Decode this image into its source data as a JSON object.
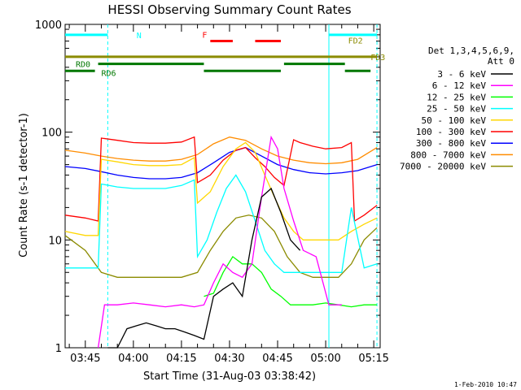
{
  "chart_data": {
    "type": "line",
    "title": "HESSI Observing Summary Count Rates",
    "xlabel": "Start Time (31-Aug-03 03:38:42)",
    "ylabel": "Count Rate (s-1 detector-1)",
    "xlim": [
      "03:38:42",
      "05:17:00"
    ],
    "ylim": [
      1,
      1000
    ],
    "yscale": "log",
    "grid": false,
    "x_ticks": [
      "03:45",
      "04:00",
      "04:15",
      "04:30",
      "04:45",
      "05:00",
      "05:15"
    ],
    "y_ticks": [
      "1",
      "10",
      "100",
      "1000"
    ],
    "legend_header": [
      "Det 1,3,4,5,6,9,",
      "Att 0"
    ],
    "legend_position": "right",
    "timestamp": "1-Feb-2010 10:47",
    "series": [
      {
        "name": "3 - 6 keV",
        "color": "#000000",
        "x": [
          "03:52",
          "03:55",
          "03:58",
          "04:01",
          "04:04",
          "04:07",
          "04:10",
          "04:13",
          "04:16",
          "04:19",
          "04:22",
          "04:25",
          "04:28",
          "04:31",
          "04:34",
          "04:37",
          "04:40",
          "04:43",
          "04:46",
          "04:49",
          "04:52"
        ],
        "y": [
          1,
          1,
          1.5,
          1.6,
          1.7,
          1.6,
          1.5,
          1.5,
          1.4,
          1.3,
          1.2,
          3.0,
          3.5,
          4.0,
          3.0,
          10,
          25,
          30,
          18,
          10,
          8
        ]
      },
      {
        "name": "6 - 12 keV",
        "color": "#ff00ff",
        "x": [
          "03:49",
          "03:51",
          "03:55",
          "04:00",
          "04:05",
          "04:10",
          "04:15",
          "04:19",
          "04:22",
          "04:25",
          "04:28",
          "04:31",
          "04:34",
          "04:37",
          "04:40",
          "04:43",
          "04:45",
          "04:47",
          "04:50",
          "04:53",
          "04:57",
          "05:01",
          "05:05"
        ],
        "y": [
          1,
          2.5,
          2.5,
          2.6,
          2.5,
          2.4,
          2.5,
          2.4,
          2.5,
          4,
          6,
          5,
          4.5,
          6,
          25,
          90,
          70,
          30,
          15,
          8,
          7,
          2.5,
          2.5
        ]
      },
      {
        "name": "12 - 25 keV",
        "color": "#00ff00",
        "x": [
          "04:22",
          "04:25",
          "04:28",
          "04:31",
          "04:34",
          "04:37",
          "04:40",
          "04:43",
          "04:46",
          "04:49",
          "04:52",
          "04:56",
          "05:00",
          "05:04",
          "05:08",
          "05:12",
          "05:16"
        ],
        "y": [
          3,
          3.2,
          5,
          7,
          6,
          6,
          5,
          3.5,
          3,
          2.5,
          2.5,
          2.5,
          2.6,
          2.5,
          2.4,
          2.5,
          2.5
        ]
      },
      {
        "name": "25 - 50 keV",
        "color": "#00ffff",
        "x": [
          "03:38:42",
          "03:45",
          "03:49",
          "03:50",
          "03:55",
          "04:00",
          "04:05",
          "04:10",
          "04:15",
          "04:19",
          "04:20",
          "04:23",
          "04:26",
          "04:29",
          "04:32",
          "04:35",
          "04:38",
          "04:41",
          "04:44",
          "04:47",
          "04:50",
          "04:55",
          "05:00",
          "05:05",
          "05:08",
          "05:12",
          "05:16"
        ],
        "y": [
          5.5,
          5.5,
          5.5,
          33,
          31,
          30,
          30,
          30,
          32,
          36,
          7,
          10,
          18,
          30,
          40,
          28,
          15,
          8,
          6,
          5,
          5,
          5,
          5,
          5,
          20,
          5.5,
          6
        ]
      },
      {
        "name": "50 - 100 keV",
        "color": "#ffd700",
        "x": [
          "03:38:42",
          "03:45",
          "03:49",
          "03:50",
          "03:55",
          "04:00",
          "04:05",
          "04:10",
          "04:15",
          "04:19",
          "04:20",
          "04:24",
          "04:28",
          "04:32",
          "04:35",
          "04:38",
          "04:41",
          "04:44",
          "04:47",
          "04:50",
          "04:53",
          "04:56",
          "05:00",
          "05:04",
          "05:08",
          "05:12",
          "05:16"
        ],
        "y": [
          12,
          11,
          11,
          56,
          53,
          50,
          49,
          49,
          50,
          58,
          22,
          28,
          48,
          70,
          80,
          65,
          40,
          25,
          16,
          12,
          10,
          10,
          10,
          10,
          12,
          14,
          16
        ]
      },
      {
        "name": "100 - 300 keV",
        "color": "#ff0000",
        "x": [
          "03:38:42",
          "03:45",
          "03:49",
          "03:50",
          "03:55",
          "04:00",
          "04:05",
          "04:10",
          "04:15",
          "04:19",
          "04:20",
          "04:24",
          "04:28",
          "04:32",
          "04:35",
          "04:38",
          "04:41",
          "04:44",
          "04:47",
          "04:50",
          "04:52",
          "04:56",
          "05:00",
          "05:05",
          "05:08",
          "05:09",
          "05:12",
          "05:16"
        ],
        "y": [
          17,
          16,
          15,
          88,
          84,
          80,
          79,
          79,
          81,
          90,
          34,
          40,
          55,
          68,
          72,
          58,
          48,
          38,
          32,
          85,
          80,
          74,
          70,
          72,
          80,
          15,
          17,
          21
        ]
      },
      {
        "name": "300 - 800 keV",
        "color": "#0000ff",
        "x": [
          "03:38:42",
          "03:45",
          "03:50",
          "03:55",
          "04:00",
          "04:05",
          "04:10",
          "04:15",
          "04:20",
          "04:25",
          "04:30",
          "04:35",
          "04:40",
          "04:45",
          "04:50",
          "04:55",
          "05:00",
          "05:05",
          "05:10",
          "05:16"
        ],
        "y": [
          48,
          46,
          43,
          40,
          38,
          37,
          37,
          38,
          42,
          52,
          65,
          72,
          60,
          50,
          45,
          42,
          41,
          42,
          44,
          50
        ]
      },
      {
        "name": "800 - 7000 keV",
        "color": "#ff8c00",
        "x": [
          "03:38:42",
          "03:45",
          "03:50",
          "03:55",
          "04:00",
          "04:05",
          "04:10",
          "04:15",
          "04:20",
          "04:25",
          "04:30",
          "04:35",
          "04:40",
          "04:45",
          "04:50",
          "04:55",
          "05:00",
          "05:05",
          "05:10",
          "05:16"
        ],
        "y": [
          68,
          64,
          60,
          57,
          55,
          54,
          54,
          56,
          62,
          78,
          90,
          84,
          70,
          60,
          55,
          52,
          51,
          52,
          56,
          72
        ]
      },
      {
        "name": "7000 - 20000 keV",
        "color": "#8b8b00",
        "x": [
          "03:38:42",
          "03:45",
          "03:50",
          "03:55",
          "04:00",
          "04:05",
          "04:10",
          "04:15",
          "04:20",
          "04:24",
          "04:28",
          "04:32",
          "04:36",
          "04:40",
          "04:44",
          "04:48",
          "04:52",
          "04:56",
          "05:00",
          "05:04",
          "05:08",
          "05:12",
          "05:16"
        ],
        "y": [
          11,
          8,
          5,
          4.5,
          4.5,
          4.5,
          4.5,
          4.5,
          5,
          8,
          12,
          16,
          17,
          16,
          12,
          7,
          5,
          4.5,
          4.5,
          4.5,
          6,
          10,
          13
        ]
      }
    ],
    "annotations": [
      {
        "label": "N",
        "color": "#00ffff",
        "y": 800,
        "segments": [
          [
            "03:38:42",
            "03:52"
          ],
          [
            "05:01",
            "05:16"
          ]
        ]
      },
      {
        "label": "F",
        "color": "#ff0000",
        "y": 700,
        "segments": [
          [
            "04:24",
            "04:31"
          ],
          [
            "04:38",
            "04:46"
          ]
        ]
      },
      {
        "label": "FD2",
        "color": "#8b8b00",
        "y": 580,
        "segments": []
      },
      {
        "label": "FD3",
        "color": "#8b8b00",
        "y": 500,
        "segments": [
          [
            "03:38:42",
            "05:16"
          ]
        ]
      },
      {
        "label": "RD0",
        "color": "#007700",
        "y": 430,
        "segments": [
          [
            "03:49",
            "04:22"
          ],
          [
            "04:47",
            "05:06"
          ]
        ]
      },
      {
        "label": "RD6",
        "color": "#007700",
        "y": 370,
        "segments": [
          [
            "03:38:42",
            "03:48"
          ],
          [
            "04:22",
            "04:46"
          ],
          [
            "05:06",
            "05:14"
          ]
        ]
      }
    ],
    "vertical_markers": [
      {
        "x": "03:52",
        "color": "#00ffff",
        "style": "dashed"
      },
      {
        "x": "05:01",
        "color": "#00ffff",
        "style": "solid"
      },
      {
        "x": "05:16",
        "color": "#00ffff",
        "style": "dashed"
      }
    ]
  }
}
